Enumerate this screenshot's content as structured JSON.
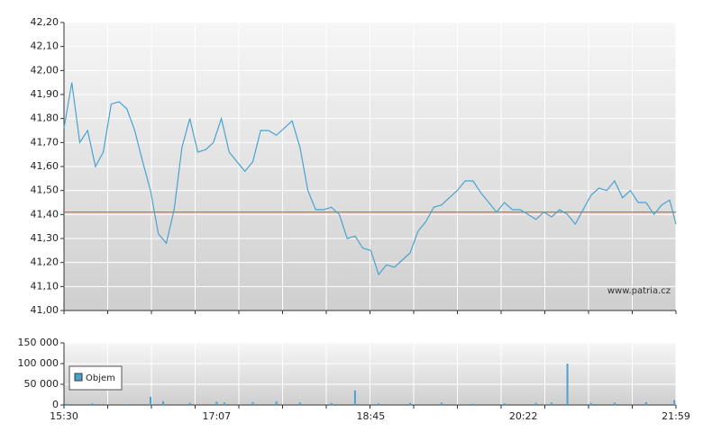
{
  "chart_data": [
    {
      "type": "line",
      "x": [
        "15:30",
        "15:35",
        "15:40",
        "15:45",
        "15:50",
        "15:55",
        "16:00",
        "16:05",
        "16:10",
        "16:15",
        "16:20",
        "16:25",
        "16:30",
        "16:35",
        "16:40",
        "16:45",
        "16:50",
        "16:55",
        "17:00",
        "17:05",
        "17:10",
        "17:15",
        "17:20",
        "17:25",
        "17:30",
        "17:35",
        "17:40",
        "17:45",
        "17:50",
        "17:55",
        "18:00",
        "18:05",
        "18:10",
        "18:15",
        "18:20",
        "18:25",
        "18:30",
        "18:35",
        "18:40",
        "18:45",
        "18:50",
        "18:55",
        "19:00",
        "19:05",
        "19:10",
        "19:15",
        "19:20",
        "19:25",
        "19:30",
        "19:35",
        "19:40",
        "19:45",
        "19:50",
        "19:55",
        "20:00",
        "20:05",
        "20:10",
        "20:15",
        "20:20",
        "20:25",
        "20:30",
        "20:35",
        "20:40",
        "20:45",
        "20:50",
        "20:55",
        "21:00",
        "21:05",
        "21:10",
        "21:15",
        "21:20",
        "21:25",
        "21:30",
        "21:35",
        "21:40",
        "21:45",
        "21:50",
        "21:55",
        "21:59"
      ],
      "values": [
        41.76,
        41.95,
        41.7,
        41.75,
        41.6,
        41.66,
        41.86,
        41.87,
        41.84,
        41.75,
        41.62,
        41.5,
        41.32,
        41.28,
        41.42,
        41.68,
        41.8,
        41.66,
        41.67,
        41.7,
        41.8,
        41.66,
        41.62,
        41.58,
        41.62,
        41.75,
        41.75,
        41.73,
        41.76,
        41.79,
        41.68,
        41.5,
        41.42,
        41.42,
        41.43,
        41.4,
        41.3,
        41.31,
        41.26,
        41.25,
        41.15,
        41.19,
        41.18,
        41.21,
        41.24,
        41.33,
        41.37,
        41.43,
        41.44,
        41.47,
        41.5,
        41.54,
        41.54,
        41.49,
        41.45,
        41.41,
        41.45,
        41.42,
        41.42,
        41.4,
        41.38,
        41.41,
        41.39,
        41.42,
        41.4,
        41.36,
        41.42,
        41.48,
        41.51,
        41.5,
        41.54,
        41.47,
        41.5,
        41.45,
        41.45,
        41.4,
        41.44,
        41.46,
        41.36
      ],
      "color": "#4aa3cf",
      "xlim": [
        "15:30",
        "21:59"
      ],
      "ylim": [
        41.0,
        42.2
      ],
      "yticks": [
        {
          "value": 41.0,
          "label": "41,00"
        },
        {
          "value": 41.1,
          "label": "41,10"
        },
        {
          "value": 41.2,
          "label": "41,20"
        },
        {
          "value": 41.3,
          "label": "41,30"
        },
        {
          "value": 41.4,
          "label": "41,40"
        },
        {
          "value": 41.5,
          "label": "41,50"
        },
        {
          "value": 41.6,
          "label": "41,60"
        },
        {
          "value": 41.7,
          "label": "41,70"
        },
        {
          "value": 41.8,
          "label": "41,80"
        },
        {
          "value": 41.9,
          "label": "41,90"
        },
        {
          "value": 42.0,
          "label": "42,00"
        },
        {
          "value": 42.1,
          "label": "42,10"
        },
        {
          "value": 42.2,
          "label": "42,20"
        }
      ],
      "reference_line": {
        "value": 41.41,
        "color": "#d9534f"
      },
      "grid": true,
      "annotation": "www.patria.cz"
    },
    {
      "type": "bar",
      "x": [
        "15:32",
        "15:48",
        "16:10",
        "16:25",
        "16:33",
        "16:50",
        "17:07",
        "17:12",
        "17:30",
        "17:45",
        "18:00",
        "18:20",
        "18:35",
        "18:50",
        "19:10",
        "19:30",
        "19:50",
        "20:10",
        "20:30",
        "20:40",
        "20:50",
        "21:05",
        "21:20",
        "21:40",
        "21:58"
      ],
      "series": [
        {
          "name": "Objem",
          "color": "#4aa3cf",
          "values": [
            3000,
            4000,
            2000,
            20000,
            9000,
            5000,
            8000,
            6000,
            7000,
            9000,
            6000,
            5000,
            35000,
            4000,
            5000,
            6000,
            3000,
            4000,
            5000,
            6000,
            100000,
            5000,
            6000,
            7000,
            12000
          ]
        }
      ],
      "xlim": [
        "15:30",
        "21:59"
      ],
      "xticks": [
        "15:30",
        "17:07",
        "18:45",
        "20:22",
        "21:59"
      ],
      "ylim": [
        0,
        150000
      ],
      "yticks": [
        0,
        {
          "value": 50000,
          "label": "50 000"
        },
        {
          "value": 100000,
          "label": "100 000"
        },
        {
          "value": 150000,
          "label": "150 000"
        }
      ],
      "grid": true,
      "legend": "upper-left"
    }
  ]
}
